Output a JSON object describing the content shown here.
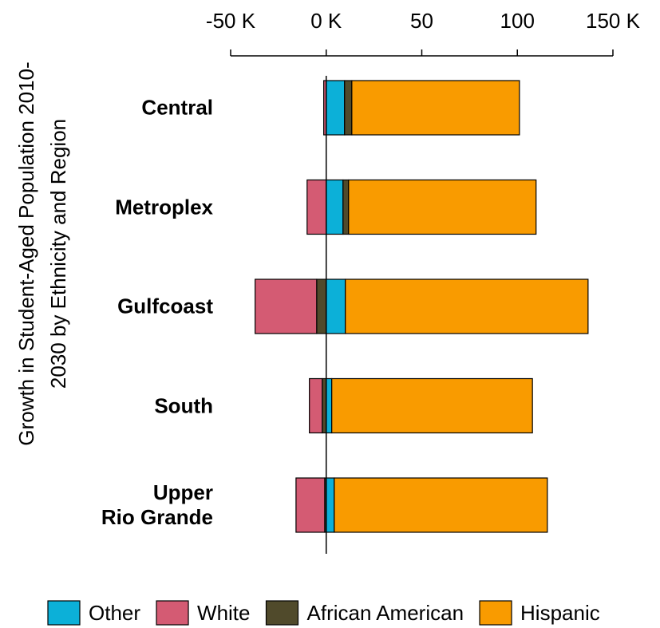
{
  "chart_data": {
    "type": "diverging_stacked_bar",
    "y_label": [
      "Growth in Student-Aged  Population 2010-",
      "2030 by Ethnicity and Region"
    ],
    "categories": [
      "Central",
      "Metroplex",
      "Gulfcoast",
      "South",
      "Upper\nRio Grande"
    ],
    "series": [
      {
        "name": "Other",
        "color": "#0cb0d8",
        "values": [
          9.6,
          8.8,
          10,
          2.9,
          4.2
        ]
      },
      {
        "name": "White",
        "color": "#d45b73",
        "values": [
          -1.3,
          -10,
          -32.2,
          -6.7,
          -15
        ]
      },
      {
        "name": "African American",
        "color": "#504a2b",
        "values": [
          3.8,
          2.9,
          -5,
          -2.1,
          -0.8
        ]
      },
      {
        "name": "Hispanic",
        "color": "#f99b00",
        "values": [
          87.7,
          98.1,
          127,
          105,
          111.5
        ]
      }
    ],
    "xlim": [
      -50,
      150
    ],
    "xticks": [
      {
        "value": -50,
        "label": "-50 K"
      },
      {
        "value": 0,
        "label": "0 K"
      },
      50,
      100,
      {
        "value": 150,
        "label": "150 K"
      }
    ],
    "legend": "bottom"
  }
}
